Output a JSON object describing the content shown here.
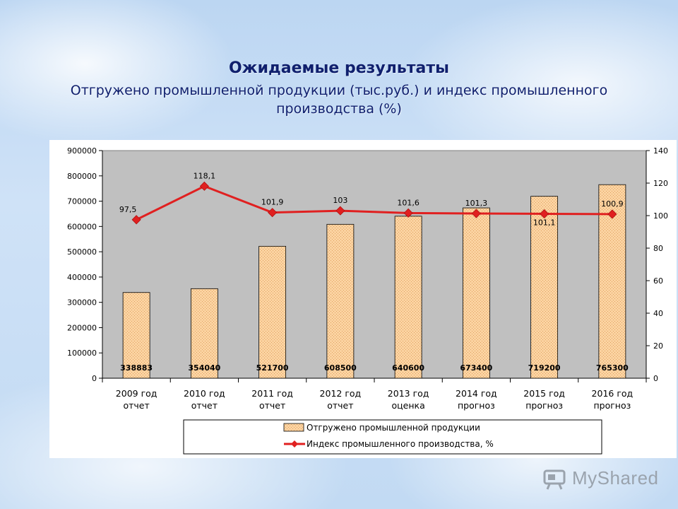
{
  "title": "Ожидаемые результаты",
  "subtitle": "Отгружено промышленной продукции (тыс.руб.) и индекс промышленного производства (%)",
  "watermark": "MyShared",
  "colors": {
    "plot_bg": "#c0c0c0",
    "bar_fill": "#fbd3a1",
    "bar_stroke": "#000000",
    "line": "#e02020",
    "marker": "#e02020"
  },
  "chart_data": {
    "type": "bar",
    "categories": [
      [
        "2009 год",
        "отчет"
      ],
      [
        "2010 год",
        "отчет"
      ],
      [
        "2011 год",
        "отчет"
      ],
      [
        "2012 год",
        "отчет"
      ],
      [
        "2013 год",
        "оценка"
      ],
      [
        "2014 год",
        "прогноз"
      ],
      [
        "2015 год",
        "прогноз"
      ],
      [
        "2016 год",
        "прогноз"
      ]
    ],
    "series": [
      {
        "name": "Отгружено промышленной продукции",
        "type": "bar",
        "axis": "left",
        "values": [
          338883,
          354040,
          521700,
          608500,
          640600,
          673400,
          719200,
          765300
        ],
        "labels": [
          "338883",
          "354040",
          "521700",
          "608500",
          "640600",
          "673400",
          "719200",
          "765300"
        ]
      },
      {
        "name": "Индекс промышленного производства, %",
        "type": "line",
        "axis": "right",
        "values": [
          97.5,
          118.1,
          101.9,
          103,
          101.6,
          101.3,
          101.1,
          100.9
        ],
        "labels": [
          "97,5",
          "118,1",
          "101,9",
          "103",
          "101,6",
          "101,3",
          "101,1",
          "100,9"
        ]
      }
    ],
    "y_left": {
      "ylim": [
        0,
        900000
      ],
      "ticks": [
        "0",
        "100000",
        "200000",
        "300000",
        "400000",
        "500000",
        "600000",
        "700000",
        "800000",
        "900000"
      ]
    },
    "y_right": {
      "ylim": [
        0,
        140
      ],
      "ticks": [
        "0",
        "20",
        "40",
        "60",
        "80",
        "100",
        "120",
        "140"
      ]
    },
    "grid": false,
    "legend_position": "bottom"
  }
}
